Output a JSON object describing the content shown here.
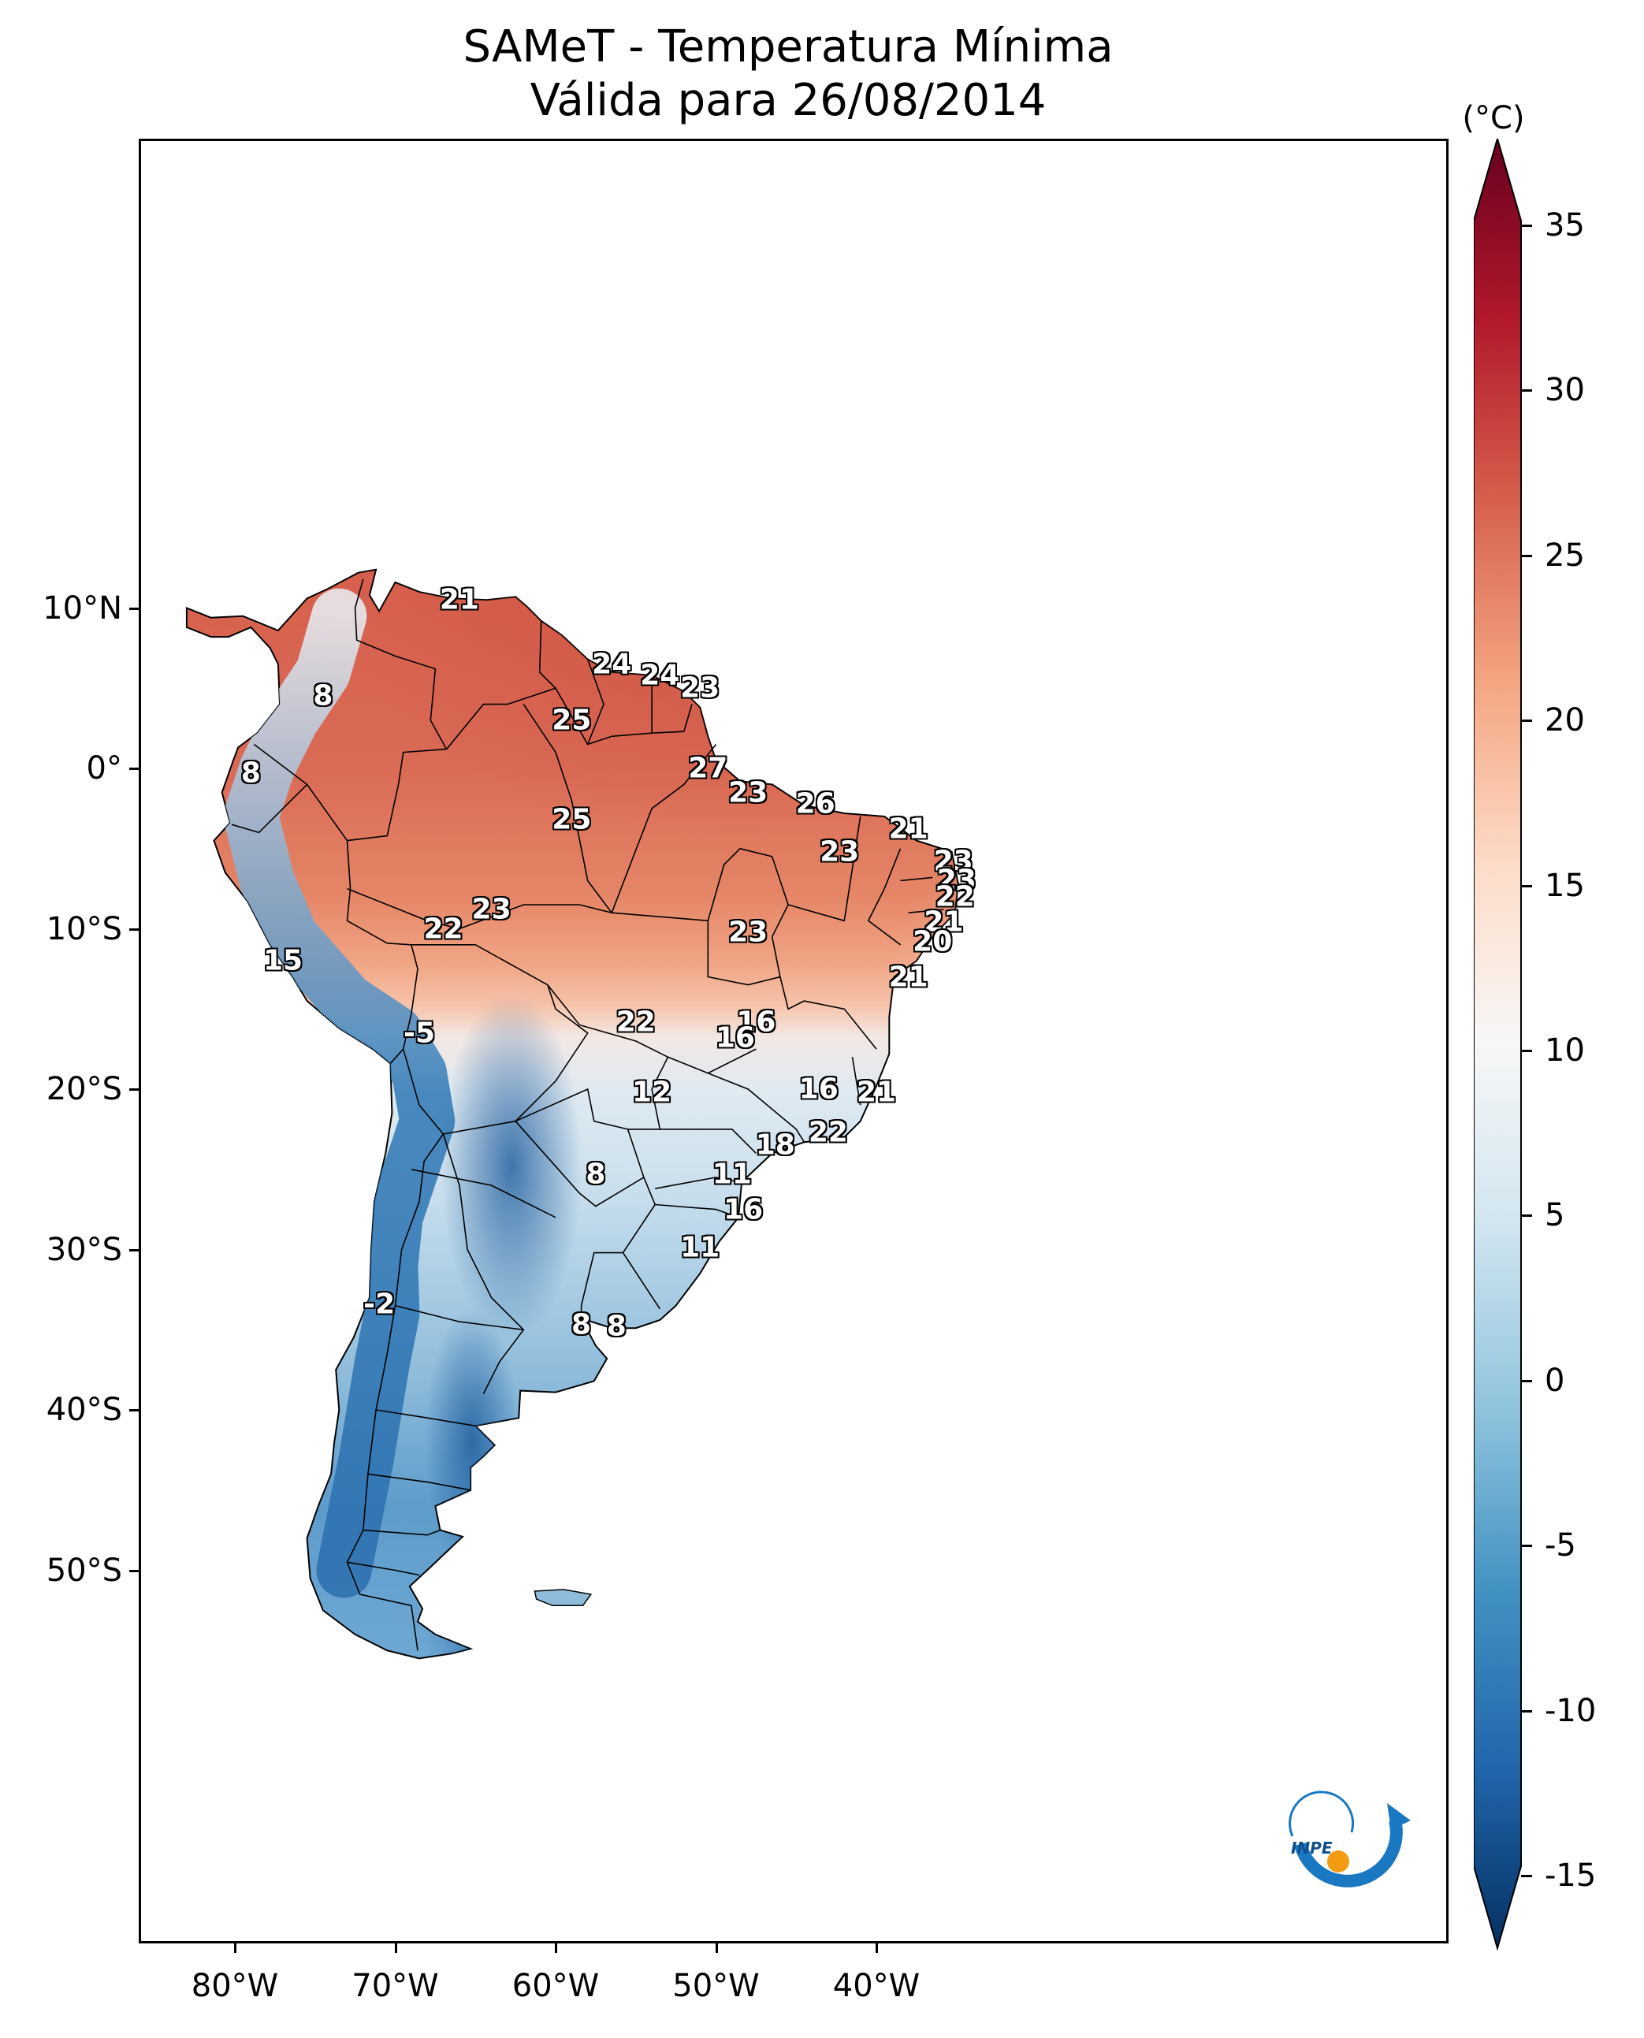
{
  "title": "SAMeT - Temperatura Mínima",
  "subtitle": "Válida para 26/08/2014",
  "latitude_labels": [
    "10°N",
    "0°",
    "10°S",
    "20°S",
    "30°S",
    "40°S",
    "50°S"
  ],
  "longitude_labels": [
    "80°W",
    "70°W",
    "60°W",
    "50°W",
    "40°W"
  ],
  "colorbar": {
    "unit": "(°C)",
    "ticks": [
      "35",
      "30",
      "25",
      "20",
      "15",
      "10",
      "5",
      "0",
      "-5",
      "-10",
      "-15"
    ],
    "min": -15,
    "max": 35,
    "extend": "both",
    "colors": [
      "#053061",
      "#2166ac",
      "#4393c3",
      "#92c5de",
      "#d1e5f0",
      "#f7f7f7",
      "#fddbc7",
      "#f4a582",
      "#d6604d",
      "#b2182b",
      "#67001f"
    ]
  },
  "map_labels": [
    {
      "value": "21",
      "lon": -66,
      "lat": 10.5
    },
    {
      "value": "24",
      "lon": -56.5,
      "lat": 6.5
    },
    {
      "value": "24",
      "lon": -53.5,
      "lat": 5.8
    },
    {
      "value": "23",
      "lon": -51,
      "lat": 5
    },
    {
      "value": "8",
      "lon": -74.5,
      "lat": 4.5
    },
    {
      "value": "25",
      "lon": -59,
      "lat": 3
    },
    {
      "value": "27",
      "lon": -50.5,
      "lat": 0
    },
    {
      "value": "8",
      "lon": -79,
      "lat": -0.3
    },
    {
      "value": "23",
      "lon": -48,
      "lat": -1.5
    },
    {
      "value": "26",
      "lon": -43.8,
      "lat": -2.2
    },
    {
      "value": "25",
      "lon": -59,
      "lat": -3.2
    },
    {
      "value": "21",
      "lon": -38,
      "lat": -3.8
    },
    {
      "value": "23",
      "lon": -42.3,
      "lat": -5.2
    },
    {
      "value": "23",
      "lon": -35.2,
      "lat": -5.8
    },
    {
      "value": "23",
      "lon": -35,
      "lat": -7
    },
    {
      "value": "22",
      "lon": -35.1,
      "lat": -8
    },
    {
      "value": "23",
      "lon": -64,
      "lat": -8.8
    },
    {
      "value": "21",
      "lon": -35.8,
      "lat": -9.6
    },
    {
      "value": "22",
      "lon": -67,
      "lat": -10
    },
    {
      "value": "23",
      "lon": -48,
      "lat": -10.2
    },
    {
      "value": "20",
      "lon": -36.5,
      "lat": -10.8
    },
    {
      "value": "15",
      "lon": -77,
      "lat": -12
    },
    {
      "value": "21",
      "lon": -38,
      "lat": -13
    },
    {
      "value": "22",
      "lon": -55,
      "lat": -15.8
    },
    {
      "value": "16",
      "lon": -47.5,
      "lat": -15.8
    },
    {
      "value": "16",
      "lon": -48.8,
      "lat": -16.8
    },
    {
      "value": "-5",
      "lon": -68.5,
      "lat": -16.5
    },
    {
      "value": "16",
      "lon": -43.6,
      "lat": -20
    },
    {
      "value": "21",
      "lon": -40,
      "lat": -20.2
    },
    {
      "value": "12",
      "lon": -54,
      "lat": -20.2
    },
    {
      "value": "22",
      "lon": -43,
      "lat": -22.7
    },
    {
      "value": "18",
      "lon": -46.3,
      "lat": -23.5
    },
    {
      "value": "8",
      "lon": -57.5,
      "lat": -25.3
    },
    {
      "value": "11",
      "lon": -49,
      "lat": -25.3
    },
    {
      "value": "16",
      "lon": -48.3,
      "lat": -27.5
    },
    {
      "value": "11",
      "lon": -51,
      "lat": -29.9
    },
    {
      "value": "-2",
      "lon": -71,
      "lat": -33.4
    },
    {
      "value": "8",
      "lon": -58.4,
      "lat": -34.7
    },
    {
      "value": "8",
      "lon": -56.2,
      "lat": -34.8
    }
  ]
}
